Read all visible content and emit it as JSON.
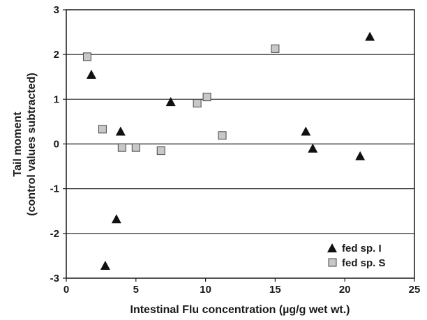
{
  "chart_data": {
    "type": "scatter",
    "xlabel": "Intestinal Flu concentration (µg/g wet wt.)",
    "ylabel_line1": "Tail moment",
    "ylabel_line2": "(control values subtracted)",
    "xlim": [
      0,
      25
    ],
    "ylim": [
      -3,
      3
    ],
    "xticks": [
      "0",
      "5",
      "10",
      "15",
      "20",
      "25"
    ],
    "yticks": [
      "-3",
      "-2",
      "-1",
      "0",
      "1",
      "2",
      "3"
    ],
    "grid": "horizontal",
    "legend_position": "bottom-right",
    "series": [
      {
        "name": "fed sp. I",
        "marker": "triangle",
        "color": "#111111",
        "points": [
          {
            "x": 1.8,
            "y": 1.55
          },
          {
            "x": 2.8,
            "y": -2.72
          },
          {
            "x": 3.6,
            "y": -1.68
          },
          {
            "x": 3.9,
            "y": 0.28
          },
          {
            "x": 7.5,
            "y": 0.94
          },
          {
            "x": 17.2,
            "y": 0.28
          },
          {
            "x": 17.7,
            "y": -0.1
          },
          {
            "x": 21.1,
            "y": -0.27
          },
          {
            "x": 21.8,
            "y": 2.4
          }
        ]
      },
      {
        "name": "fed sp. S",
        "marker": "square",
        "color": "#c8c8c8",
        "points": [
          {
            "x": 1.5,
            "y": 1.95
          },
          {
            "x": 2.6,
            "y": 0.33
          },
          {
            "x": 4.0,
            "y": -0.08
          },
          {
            "x": 5.0,
            "y": -0.08
          },
          {
            "x": 6.8,
            "y": -0.15
          },
          {
            "x": 9.4,
            "y": 0.91
          },
          {
            "x": 10.1,
            "y": 1.05
          },
          {
            "x": 11.2,
            "y": 0.19
          },
          {
            "x": 15.0,
            "y": 2.13
          }
        ]
      }
    ]
  }
}
